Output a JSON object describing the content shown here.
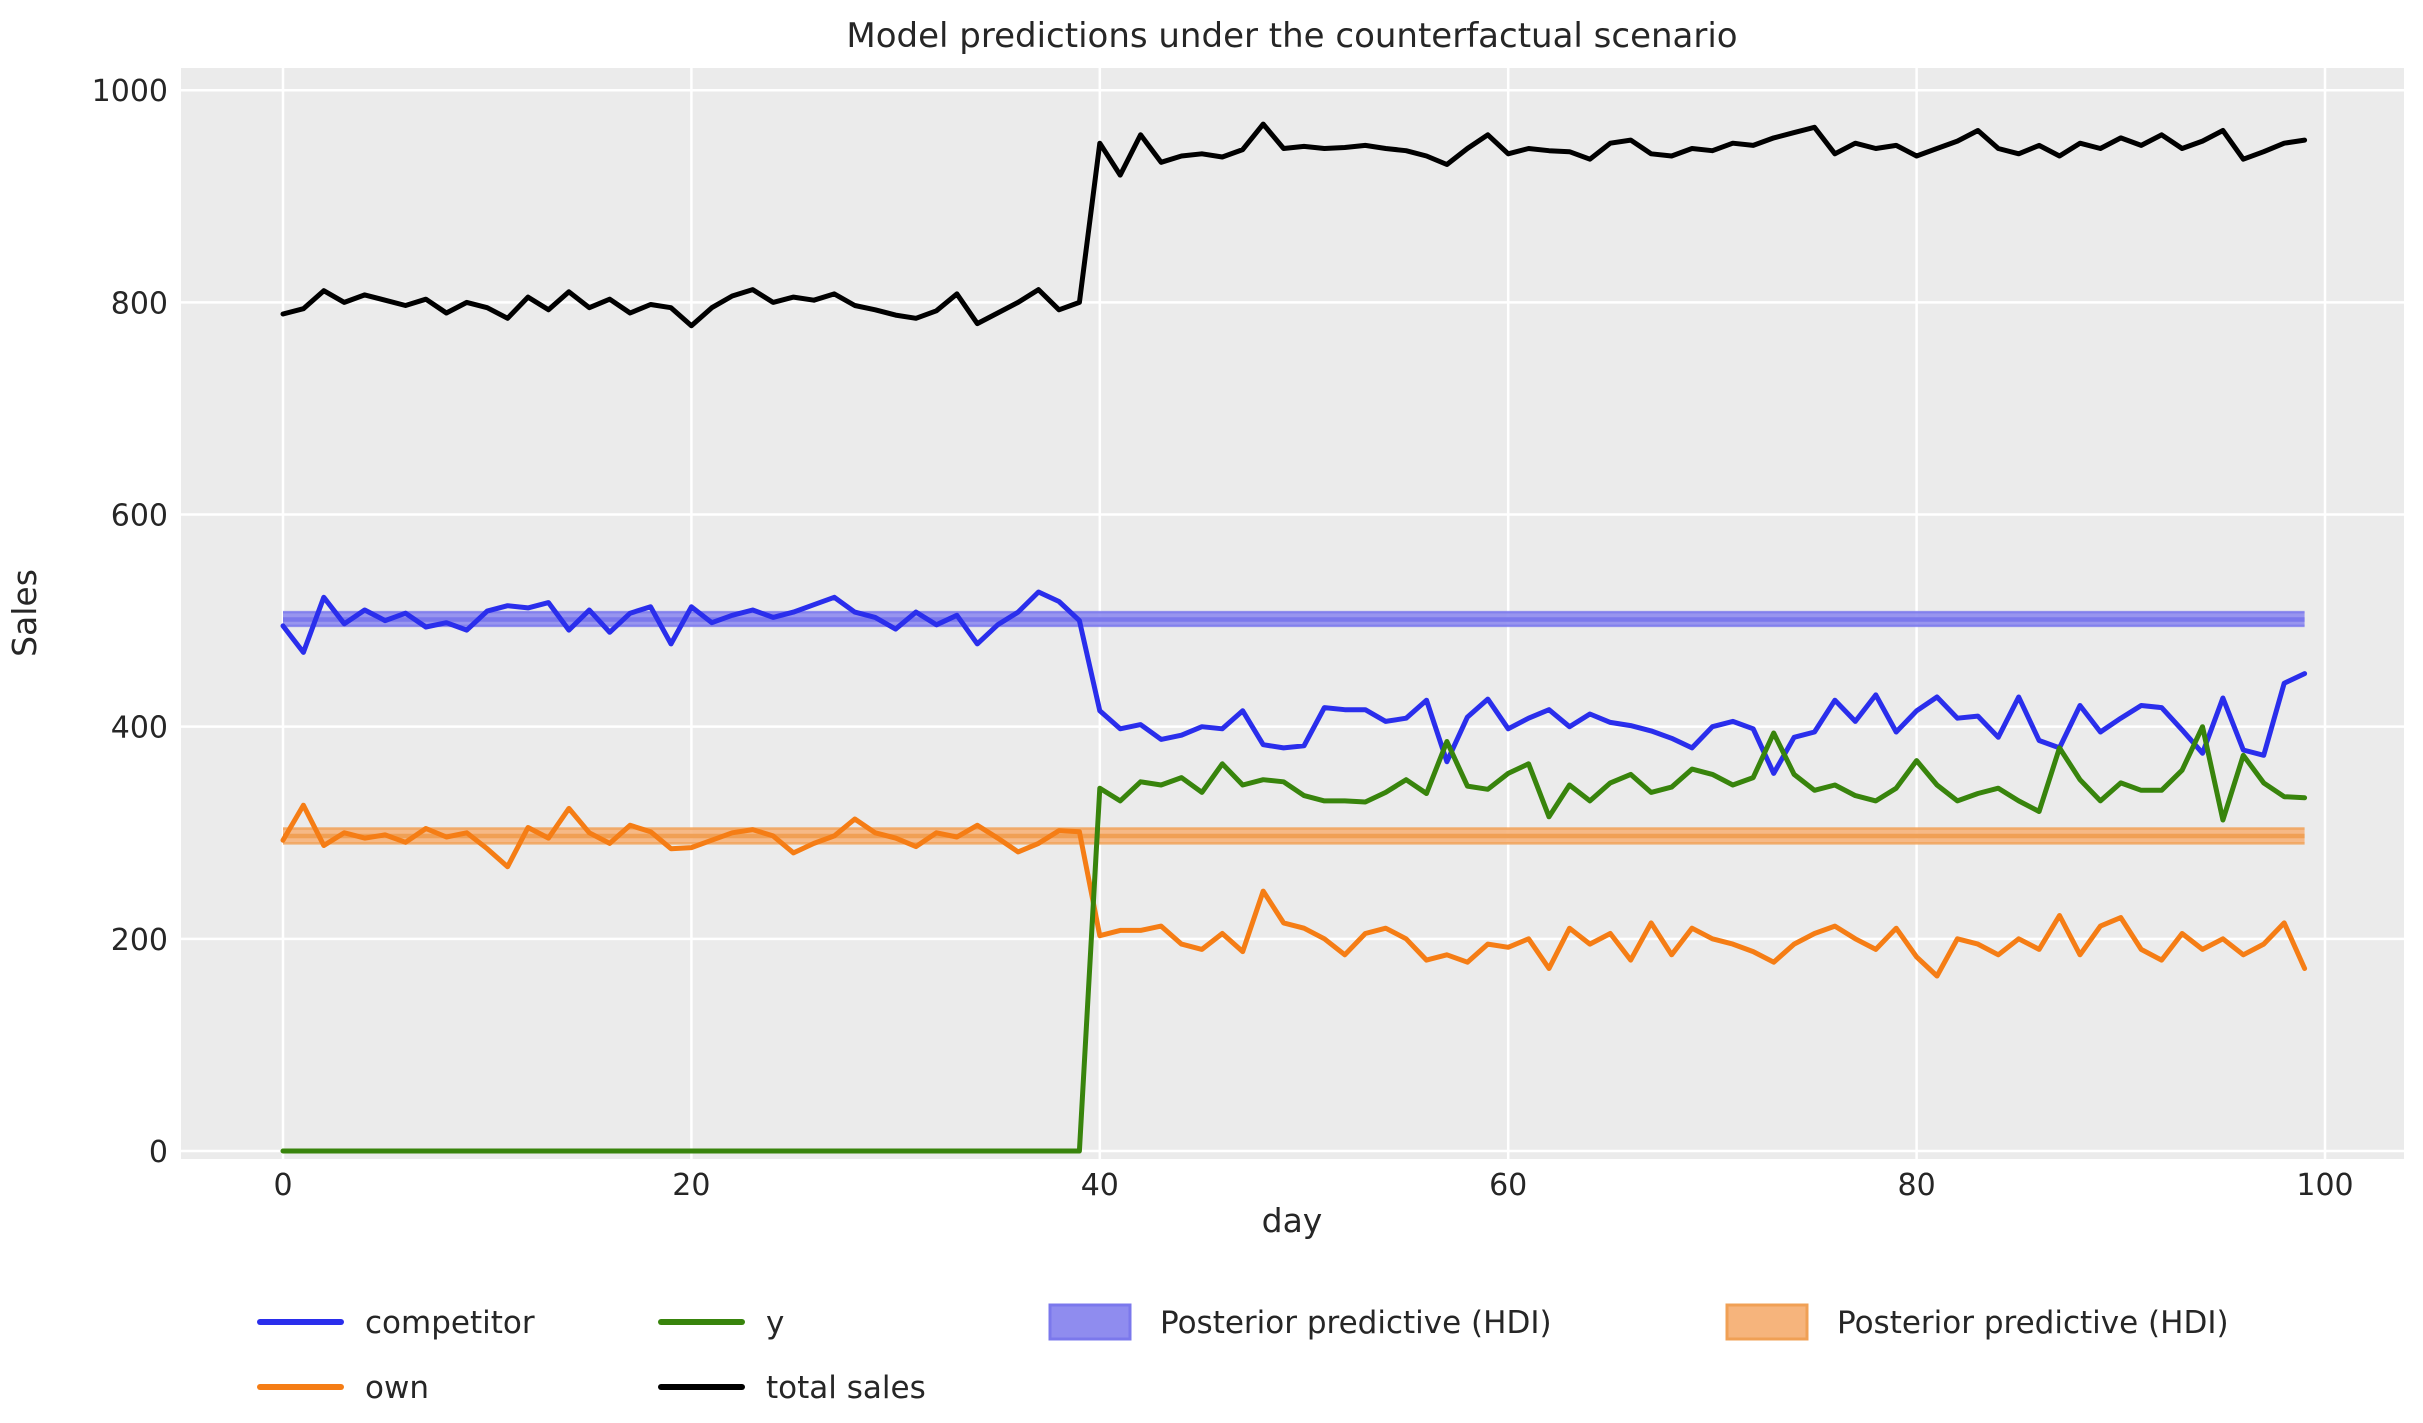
{
  "figure": {
    "title": "Model predictions under the counterfactual scenario",
    "xlabel": "day",
    "ylabel": "Sales",
    "background": "#ffffff",
    "plot_background": "#ebebeb",
    "grid_color": "#ffffff",
    "text_color": "#262626"
  },
  "axes": {
    "x_ticks": [
      0,
      20,
      40,
      60,
      80,
      100
    ],
    "y_ticks": [
      0,
      200,
      400,
      600,
      800,
      1000
    ],
    "xlim": [
      -5,
      104
    ],
    "ylim": [
      -8,
      1021
    ]
  },
  "legend": {
    "entries": [
      {
        "label": "competitor",
        "type": "line",
        "color": "#2a2eec"
      },
      {
        "label": "own",
        "type": "line",
        "color": "#f57d15"
      },
      {
        "label": "y",
        "type": "line",
        "color": "#38840c"
      },
      {
        "label": "total sales",
        "type": "line",
        "color": "#000000"
      },
      {
        "label": "Posterior predictive (HDI)",
        "type": "patch",
        "color": "#8f8cef",
        "edge": "#7b78ec"
      },
      {
        "label": "Posterior predictive (HDI)",
        "type": "patch",
        "color": "#f6b47c",
        "edge": "#f0a055"
      }
    ]
  },
  "chart_data": {
    "type": "line",
    "title": "Model predictions under the counterfactual scenario",
    "xlabel": "day",
    "ylabel": "Sales",
    "xlim": [
      -5,
      104
    ],
    "ylim": [
      -8,
      1021
    ],
    "grid": true,
    "legend_position": "below",
    "intervention_day": 40,
    "x": [
      0,
      1,
      2,
      3,
      4,
      5,
      6,
      7,
      8,
      9,
      10,
      11,
      12,
      13,
      14,
      15,
      16,
      17,
      18,
      19,
      20,
      21,
      22,
      23,
      24,
      25,
      26,
      27,
      28,
      29,
      30,
      31,
      32,
      33,
      34,
      35,
      36,
      37,
      38,
      39,
      40,
      41,
      42,
      43,
      44,
      45,
      46,
      47,
      48,
      49,
      50,
      51,
      52,
      53,
      54,
      55,
      56,
      57,
      58,
      59,
      60,
      61,
      62,
      63,
      64,
      65,
      66,
      67,
      68,
      69,
      70,
      71,
      72,
      73,
      74,
      75,
      76,
      77,
      78,
      79,
      80,
      81,
      82,
      83,
      84,
      85,
      86,
      87,
      88,
      89,
      90,
      91,
      92,
      93,
      94,
      95,
      96,
      97,
      98,
      99
    ],
    "series": [
      {
        "name": "competitor",
        "color": "#2a2eec",
        "linewidth": 5,
        "values": [
          495,
          470,
          522,
          497,
          510,
          500,
          507,
          494,
          498,
          491,
          509,
          514,
          512,
          517,
          491,
          510,
          489,
          507,
          513,
          478,
          513,
          498,
          505,
          510,
          503,
          508,
          515,
          522,
          508,
          503,
          492,
          508,
          496,
          505,
          478,
          496,
          508,
          527,
          518,
          500,
          415,
          398,
          402,
          388,
          392,
          400,
          398,
          415,
          383,
          380,
          382,
          418,
          416,
          416,
          405,
          408,
          425,
          367,
          409,
          426,
          398,
          408,
          416,
          400,
          412,
          404,
          401,
          396,
          389,
          380,
          400,
          405,
          398,
          356,
          390,
          395,
          425,
          405,
          430,
          395,
          415,
          428,
          408,
          410,
          390,
          428,
          387,
          380,
          420,
          395,
          408,
          420,
          418,
          397,
          375,
          427,
          378,
          373,
          441,
          450
        ]
      },
      {
        "name": "own",
        "color": "#f57d15",
        "linewidth": 5,
        "values": [
          293,
          326,
          288,
          300,
          295,
          298,
          291,
          304,
          296,
          300,
          285,
          268,
          305,
          295,
          323,
          300,
          290,
          307,
          301,
          285,
          286,
          293,
          300,
          303,
          297,
          281,
          290,
          297,
          313,
          300,
          295,
          287,
          300,
          296,
          307,
          295,
          282,
          290,
          302,
          301,
          203,
          208,
          208,
          212,
          195,
          190,
          205,
          188,
          245,
          215,
          210,
          200,
          185,
          205,
          210,
          200,
          180,
          185,
          178,
          195,
          192,
          200,
          172,
          210,
          195,
          205,
          180,
          215,
          185,
          210,
          200,
          195,
          188,
          178,
          195,
          205,
          212,
          200,
          190,
          210,
          183,
          165,
          200,
          195,
          185,
          200,
          190,
          222,
          185,
          212,
          220,
          190,
          180,
          205,
          190,
          200,
          185,
          195,
          215,
          172
        ]
      },
      {
        "name": "y",
        "color": "#38840c",
        "linewidth": 5,
        "values": [
          0,
          0,
          0,
          0,
          0,
          0,
          0,
          0,
          0,
          0,
          0,
          0,
          0,
          0,
          0,
          0,
          0,
          0,
          0,
          0,
          0,
          0,
          0,
          0,
          0,
          0,
          0,
          0,
          0,
          0,
          0,
          0,
          0,
          0,
          0,
          0,
          0,
          0,
          0,
          0,
          342,
          330,
          348,
          345,
          352,
          338,
          365,
          345,
          350,
          348,
          335,
          330,
          330,
          329,
          338,
          350,
          337,
          386,
          344,
          341,
          356,
          365,
          315,
          345,
          330,
          347,
          355,
          338,
          343,
          360,
          355,
          345,
          352,
          394,
          355,
          340,
          345,
          335,
          330,
          342,
          368,
          345,
          330,
          337,
          342,
          330,
          320,
          380,
          350,
          330,
          347,
          340,
          340,
          359,
          400,
          312,
          373,
          347,
          334,
          333
        ]
      },
      {
        "name": "total sales",
        "color": "#000000",
        "linewidth": 5,
        "values": [
          789,
          794,
          811,
          800,
          807,
          802,
          797,
          803,
          790,
          800,
          795,
          785,
          805,
          793,
          810,
          795,
          803,
          790,
          798,
          795,
          778,
          795,
          806,
          812,
          800,
          805,
          802,
          808,
          797,
          793,
          788,
          785,
          792,
          808,
          780,
          790,
          800,
          812,
          793,
          800,
          950,
          920,
          958,
          932,
          938,
          940,
          937,
          944,
          968,
          945,
          947,
          945,
          946,
          948,
          945,
          943,
          938,
          930,
          945,
          958,
          940,
          945,
          943,
          942,
          935,
          950,
          953,
          940,
          938,
          945,
          943,
          950,
          948,
          955,
          960,
          965,
          940,
          950,
          945,
          948,
          938,
          945,
          952,
          962,
          945,
          940,
          948,
          938,
          950,
          945,
          955,
          948,
          958,
          945,
          952,
          962,
          935,
          942,
          950,
          953
        ]
      }
    ],
    "hdi_bands": [
      {
        "label": "Posterior predictive (HDI)",
        "applies_to": "competitor",
        "x_start": 0,
        "x_end": 99,
        "lower": 495,
        "upper": 508,
        "center": 501,
        "fill": "#8f8cef",
        "edge": "#7b78ec"
      },
      {
        "label": "Posterior predictive (HDI)",
        "applies_to": "own",
        "x_start": 0,
        "x_end": 99,
        "lower": 290,
        "upper": 304,
        "center": 297,
        "fill": "#f6b47c",
        "edge": "#f0a055"
      }
    ]
  }
}
